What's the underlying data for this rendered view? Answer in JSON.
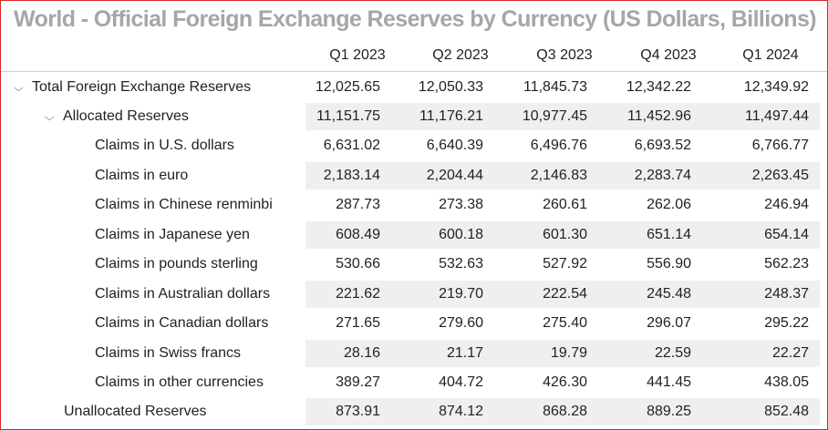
{
  "title": "World - Official Foreign Exchange Reserves by Currency (US Dollars, Billions)",
  "columns": [
    "Q1 2023",
    "Q2 2023",
    "Q3 2023",
    "Q4 2023",
    "Q1 2024"
  ],
  "rows": [
    {
      "label": "Total Foreign Exchange Reserves",
      "values": [
        "12,025.65",
        "12,050.33",
        "11,845.73",
        "12,342.22",
        "12,349.92"
      ]
    },
    {
      "label": "Allocated Reserves",
      "values": [
        "11,151.75",
        "11,176.21",
        "10,977.45",
        "11,452.96",
        "11,497.44"
      ]
    },
    {
      "label": "Claims in U.S. dollars",
      "values": [
        "6,631.02",
        "6,640.39",
        "6,496.76",
        "6,693.52",
        "6,766.77"
      ]
    },
    {
      "label": "Claims in euro",
      "values": [
        "2,183.14",
        "2,204.44",
        "2,146.83",
        "2,283.74",
        "2,263.45"
      ]
    },
    {
      "label": "Claims in Chinese renminbi",
      "values": [
        "287.73",
        "273.38",
        "260.61",
        "262.06",
        "246.94"
      ]
    },
    {
      "label": "Claims in Japanese yen",
      "values": [
        "608.49",
        "600.18",
        "601.30",
        "651.14",
        "654.14"
      ]
    },
    {
      "label": "Claims in pounds sterling",
      "values": [
        "530.66",
        "532.63",
        "527.92",
        "556.90",
        "562.23"
      ]
    },
    {
      "label": "Claims in Australian dollars",
      "values": [
        "221.62",
        "219.70",
        "222.54",
        "245.48",
        "248.37"
      ]
    },
    {
      "label": "Claims in Canadian dollars",
      "values": [
        "271.65",
        "279.60",
        "275.40",
        "296.07",
        "295.22"
      ]
    },
    {
      "label": "Claims in Swiss francs",
      "values": [
        "28.16",
        "21.17",
        "19.79",
        "22.59",
        "22.27"
      ]
    },
    {
      "label": "Claims in other currencies",
      "values": [
        "389.27",
        "404.72",
        "426.30",
        "441.45",
        "438.05"
      ]
    },
    {
      "label": "Unallocated Reserves",
      "values": [
        "873.91",
        "874.12",
        "868.28",
        "889.25",
        "852.48"
      ]
    }
  ],
  "expander_icon": "chevron-down-icon",
  "colors": {
    "frame_border": "#d9262b",
    "title": "#a6a6a6",
    "alt_row": "#efefef"
  }
}
